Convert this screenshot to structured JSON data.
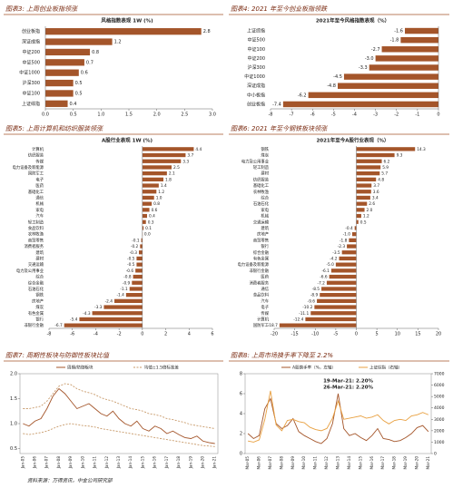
{
  "chart_data": [
    {
      "type": "hbar",
      "figure_title": "图表3: 上周创业板指领涨",
      "title": "风格指数表现 1W (%)",
      "color": "#a4552a",
      "categories": [
        "创业板指",
        "深证成指",
        "中证200",
        "中证500",
        "中证1000",
        "沪深300",
        "中证100",
        "上证综指"
      ],
      "values": [
        2.8,
        1.2,
        0.8,
        0.7,
        0.6,
        0.5,
        0.5,
        0.4
      ],
      "xlim": [
        0,
        3
      ],
      "xticks": [
        {
          "value": 0,
          "label": "0.0"
        },
        0.5,
        {
          "value": 1,
          "label": "1.0"
        },
        1.5,
        {
          "value": 2,
          "label": "2.0"
        },
        2.5,
        {
          "value": 3,
          "label": "3.0"
        }
      ]
    },
    {
      "type": "hbar",
      "figure_title": "图表4: 2021 年至今创业板指领跌",
      "title": "2021年至今风格指数表现（%）",
      "color": "#a4552a",
      "categories": [
        "上证综指",
        "中证500",
        "中证100",
        "中证200",
        "沪深300",
        "中证1000",
        "深证成指",
        "中小板指",
        "创业板指"
      ],
      "values": [
        -1.6,
        -1.8,
        -2.7,
        -3.0,
        -3.3,
        -4.5,
        -4.8,
        -6.2,
        -7.4
      ],
      "value_labels": [
        "-1.6",
        "-1.8",
        "-2.7",
        "-3.0",
        "-3.3",
        "-4.5",
        "-4.8",
        "-6.2",
        "-7.4"
      ],
      "xlim": [
        -8,
        0
      ],
      "xticks": [
        -8,
        -7,
        -6,
        -5,
        -4,
        -3,
        -2,
        -1,
        0
      ]
    },
    {
      "type": "hbar",
      "figure_title": "图表5: 上周计算机和纺织服装领涨",
      "title": "A股行业表现 1W (%)",
      "color": "#a4552a",
      "categories": [
        "计算机",
        "纺织服装",
        "传媒",
        "电力设备及新能源",
        "国防军工",
        "电子",
        "医药",
        "基础化工",
        "通信",
        "机械",
        "家电",
        "汽车",
        "轻工制造",
        "食品饮料",
        "农林牧渔",
        "商贸零售",
        "消费者服务",
        "建筑",
        "建材",
        "交通运输",
        "电力及公用事业",
        "综合",
        "综合金融",
        "石油石化",
        "钢铁",
        "房地产",
        "煤炭",
        "有色金属",
        "银行",
        "非银行金融"
      ],
      "values": [
        4.4,
        3.7,
        3.3,
        2.5,
        2.1,
        1.8,
        1.4,
        1.2,
        1.0,
        0.8,
        0.6,
        0.4,
        0.3,
        0.1,
        0.0,
        -0.1,
        -0.2,
        -0.3,
        -0.5,
        -0.5,
        -0.6,
        -0.8,
        -0.9,
        -1.1,
        -1.4,
        -2.4,
        -3.3,
        -4.3,
        -5.4,
        -6.7
      ],
      "value_labels": [
        "4.4",
        "3.7",
        "3.3",
        "2.5",
        "2.1",
        "1.8",
        "1.4",
        "1.2",
        "1.0",
        "0.8",
        "0.6",
        "0.4",
        "0.3",
        "0.1",
        "0.0",
        "-0.1",
        "-0.2",
        "-0.3",
        "-0.5",
        "-0.5",
        "-0.6",
        "-0.8",
        "-0.9",
        "-1.1",
        "-1.4",
        "-2.4",
        "-3.3",
        "-4.3",
        "-5.4",
        "-6.7"
      ],
      "xlim": [
        -8,
        6
      ],
      "xticks": [
        -8,
        -6,
        -4,
        -2,
        0,
        2,
        4,
        6
      ]
    },
    {
      "type": "hbar",
      "figure_title": "图表6: 2021 年至今钢铁板块领涨",
      "title": "2021年至今A股行业表现（%）",
      "color": "#a4552a",
      "categories": [
        "钢铁",
        "煤炭",
        "电力及公用事业",
        "轻工制造",
        "建材",
        "纺织服装",
        "基础化工",
        "农林牧渔",
        "综合",
        "石油石化",
        "家电",
        "机械",
        "交通运输",
        "建筑",
        "房地产",
        "商贸零售",
        "银行",
        "综合金融",
        "有色金属",
        "电力设备及新能源",
        "非银行金融",
        "医药",
        "消费者服务",
        "通信",
        "食品饮料",
        "汽车",
        "电子",
        "传媒",
        "计算机",
        "国防军工"
      ],
      "values": [
        14.3,
        9.3,
        6.2,
        5.9,
        5.7,
        4.8,
        3.7,
        3.6,
        3.4,
        2.6,
        2.0,
        1.2,
        0.5,
        -0.4,
        -1.0,
        -1.8,
        -2.3,
        -3.5,
        -4.2,
        -5.0,
        -6.1,
        -6.6,
        -7.2,
        -8.5,
        -8.9,
        -9.6,
        -10.2,
        -11.1,
        -12.4,
        -18.7
      ],
      "value_labels": [
        "14.3",
        "9.3",
        "6.2",
        "5.9",
        "5.7",
        "4.8",
        "3.7",
        "3.6",
        "3.4",
        "2.6",
        "2.0",
        "1.2",
        "0.5",
        "-0.4",
        "-1.0",
        "-1.8",
        "-2.3",
        "-3.5",
        "-4.2",
        "-5.0",
        "-6.1",
        "-6.6",
        "-7.2",
        "-8.5",
        "-8.9",
        "-9.6",
        "-10.2",
        "-11.1",
        "-12.4",
        "-18.7"
      ],
      "xlim": [
        -20,
        20
      ],
      "xticks": [
        -20,
        -15,
        -10,
        -5,
        0,
        5,
        10,
        15,
        20
      ]
    },
    {
      "type": "line",
      "figure_title": "图表7: 周期性板块与防御性板块比值",
      "categories": [
        "Jan-05",
        null,
        "Jan-06",
        null,
        "Jan-07",
        null,
        "Jan-08",
        null,
        "Jan-09",
        null,
        "Jan-10",
        null,
        "Jan-11",
        null,
        "Jan-12",
        null,
        "Jan-13",
        null,
        "Jan-14",
        null,
        "Jan-15",
        null,
        "Jan-16",
        null,
        "Jan-17",
        null,
        "Jan-18",
        null,
        "Jan-19",
        null,
        "Jan-20",
        null,
        "Jan-21"
      ],
      "series": [
        {
          "name": "周期/防御板块",
          "color": "#a4552a",
          "style": "solid",
          "values": [
            1.0,
            0.95,
            1.05,
            1.1,
            1.3,
            1.55,
            1.7,
            1.6,
            1.45,
            1.3,
            1.35,
            1.4,
            1.3,
            1.2,
            1.15,
            1.25,
            1.1,
            1.0,
            0.95,
            1.05,
            0.9,
            0.85,
            0.95,
            0.9,
            0.8,
            0.85,
            0.78,
            0.72,
            0.7,
            0.75,
            0.65,
            0.62,
            0.6
          ]
        },
        {
          "name": "均值±1.5倍标准差",
          "color": "#c89a6a",
          "style": "dashed",
          "values": [
            1.3,
            1.3,
            1.32,
            1.35,
            1.45,
            1.6,
            1.75,
            1.8,
            1.78,
            1.7,
            1.65,
            1.62,
            1.58,
            1.52,
            1.48,
            1.45,
            1.4,
            1.35,
            1.3,
            1.28,
            1.25,
            1.2,
            1.18,
            1.15,
            1.1,
            1.08,
            1.05,
            1.02,
            0.98,
            0.96,
            0.94,
            0.92,
            0.9
          ]
        },
        {
          "color": "#c89a6a",
          "style": "dashed",
          "values": [
            0.8,
            0.78,
            0.8,
            0.82,
            0.85,
            0.9,
            0.95,
            0.98,
            1.0,
            0.98,
            0.96,
            0.95,
            0.93,
            0.9,
            0.88,
            0.86,
            0.84,
            0.82,
            0.8,
            0.78,
            0.76,
            0.74,
            0.72,
            0.7,
            0.68,
            0.66,
            0.64,
            0.62,
            0.6,
            0.58,
            0.56,
            0.55,
            0.54
          ]
        }
      ],
      "ylim": [
        0.4,
        2.0
      ],
      "yticks": [
        0.5,
        {
          "value": 1,
          "label": "1.0"
        },
        1.5,
        {
          "value": 2,
          "label": "2.0"
        }
      ]
    },
    {
      "type": "line",
      "figure_title": "图表8: 上周市场换手率下降至 2.2%",
      "annotations": [
        "19-Mar-21: 2.20%",
        "26-Mar-21: 2.20%"
      ],
      "categories": [
        "Mar-05",
        null,
        "Mar-06",
        null,
        "Mar-07",
        null,
        "Mar-08",
        null,
        "Mar-09",
        null,
        "Mar-10",
        null,
        "Mar-11",
        null,
        "Mar-12",
        null,
        "Mar-13",
        null,
        "Mar-14",
        null,
        "Mar-15",
        null,
        "Mar-16",
        null,
        "Mar-17",
        null,
        "Mar-18",
        null,
        "Mar-19",
        null,
        "Mar-20",
        null,
        "Mar-21"
      ],
      "series": [
        {
          "name": "A股换手率（%，左轴）",
          "color": "#a4552a",
          "style": "solid",
          "values": [
            2.0,
            1.5,
            1.8,
            4.5,
            5.5,
            3.0,
            2.5,
            2.8,
            3.5,
            2.2,
            1.8,
            1.5,
            1.2,
            1.0,
            1.5,
            3.0,
            6.0,
            2.5,
            1.8,
            2.0,
            1.6,
            1.3,
            1.8,
            2.5,
            1.5,
            1.4,
            1.2,
            1.3,
            1.6,
            2.0,
            2.6,
            2.8,
            2.2
          ]
        },
        {
          "name": "上证综指（右轴）",
          "color": "#e8a040",
          "style": "solid",
          "axis": "y2",
          "values": [
            1100,
            1000,
            1200,
            3000,
            5500,
            2500,
            2000,
            2900,
            3000,
            2800,
            2700,
            2300,
            2100,
            2000,
            2200,
            3100,
            4600,
            3000,
            3100,
            3200,
            3300,
            3100,
            3200,
            3400,
            2900,
            2600,
            2900,
            3000,
            2900,
            3300,
            3400,
            3600,
            3400
          ]
        }
      ],
      "ylim": [
        0,
        8
      ],
      "yticks": [
        0,
        2,
        4,
        6,
        8
      ],
      "y2lim": [
        0,
        7000
      ],
      "y2ticks": [
        0,
        1000,
        2000,
        3000,
        4000,
        5000,
        6000,
        7000
      ]
    }
  ],
  "source": "资料来源：万得资讯，中金公司研究部"
}
